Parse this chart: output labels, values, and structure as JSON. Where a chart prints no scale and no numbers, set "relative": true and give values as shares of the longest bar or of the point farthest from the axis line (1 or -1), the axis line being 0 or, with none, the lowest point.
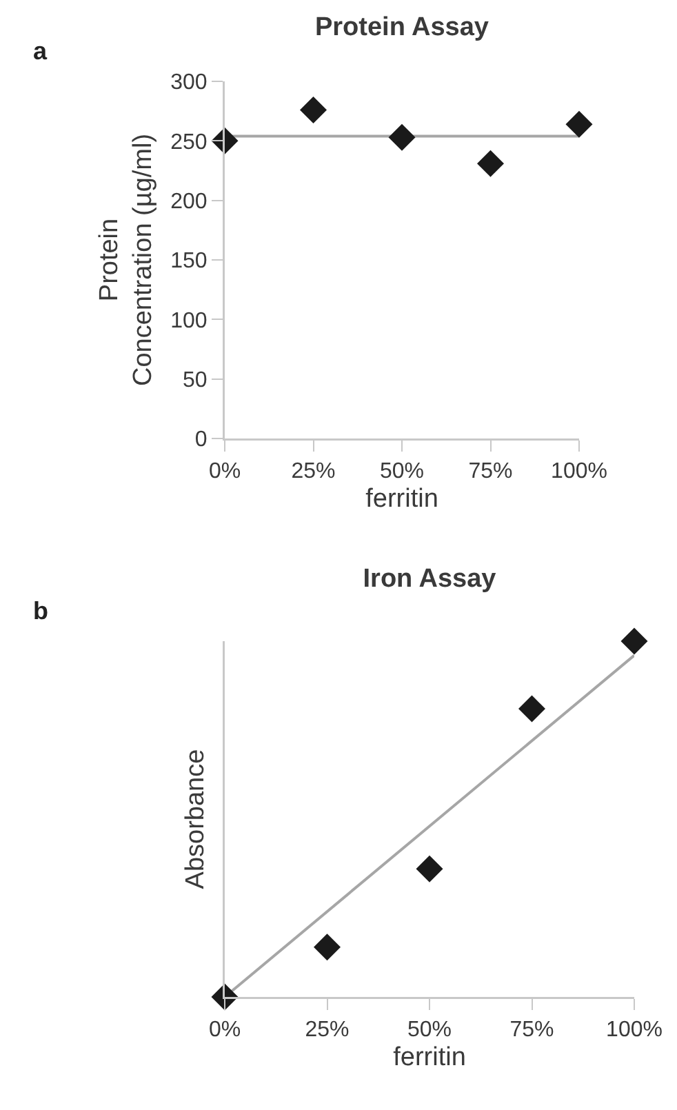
{
  "chart_data": [
    {
      "type": "scatter",
      "title": "Protein Assay",
      "xlabel": "ferritin",
      "ylabel": "Protein\nConcentration (µg/ml)",
      "annotations": [
        "a"
      ],
      "categories": [
        "0%",
        "25%",
        "50%",
        "75%",
        "100%"
      ],
      "series": [
        {
          "type": "scatter",
          "color": "#1a1a1a",
          "marker": "diamond",
          "values": [
            250,
            276,
            253,
            231,
            264
          ]
        },
        {
          "type": "line",
          "color": "#a6a6a6",
          "marker": "none",
          "x": [
            "0%",
            "100%"
          ],
          "values": [
            254,
            254
          ]
        }
      ],
      "ylim": [
        0,
        300
      ],
      "yticks": [
        0,
        50,
        100,
        150,
        200,
        250,
        300
      ]
    },
    {
      "type": "scatter",
      "title": "Iron Assay",
      "xlabel": "ferritin",
      "ylabel": "Absorbance",
      "annotations": [
        "b"
      ],
      "relative": true,
      "categories": [
        "0%",
        "25%",
        "50%",
        "75%",
        "100%"
      ],
      "series": [
        {
          "type": "scatter",
          "color": "#1a1a1a",
          "marker": "diamond",
          "values": [
            0,
            0.14,
            0.36,
            0.81,
            1
          ]
        },
        {
          "type": "line",
          "color": "#a6a6a6",
          "marker": "none",
          "x": [
            "0%",
            "100%"
          ],
          "values": [
            0,
            0.96
          ]
        }
      ]
    }
  ]
}
